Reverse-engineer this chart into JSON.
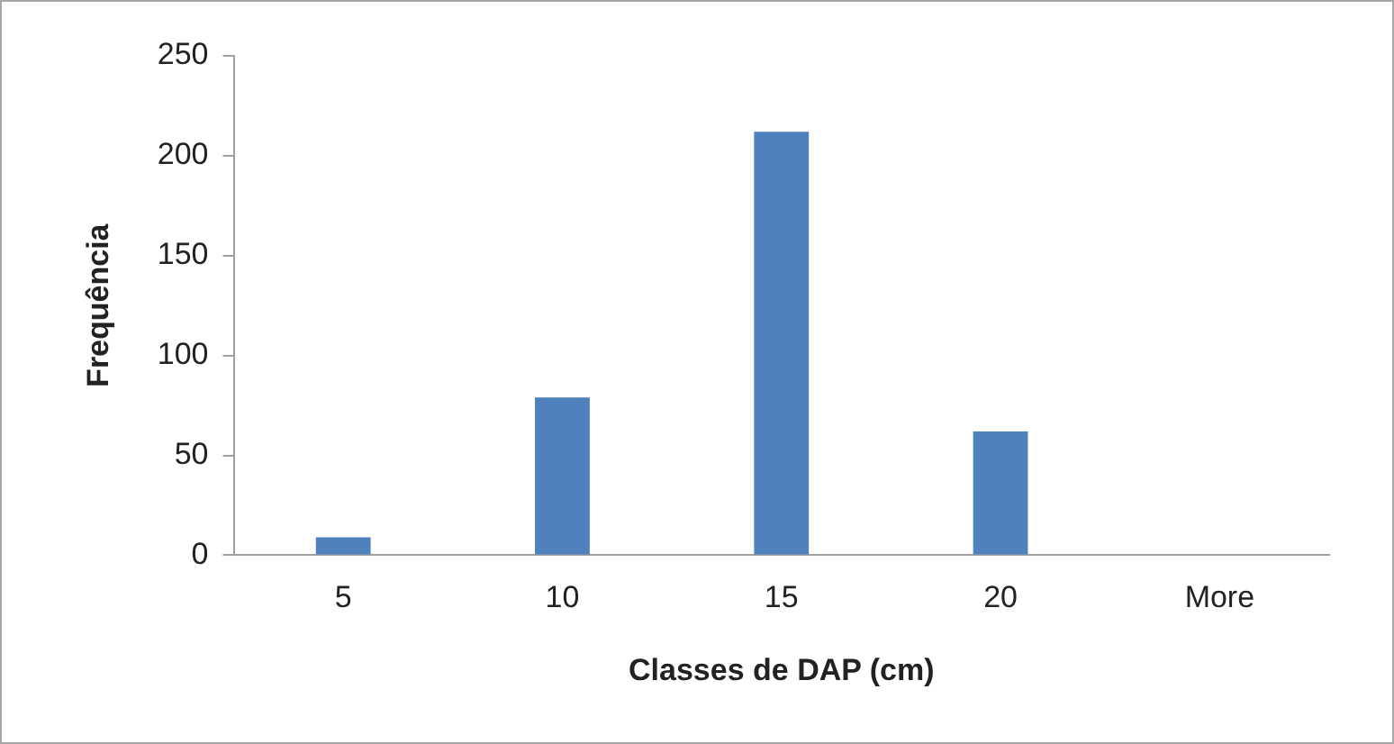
{
  "chart_data": {
    "type": "bar",
    "xlabel": "Classes de DAP (cm)",
    "ylabel": "Frequência",
    "categories": [
      "5",
      "10",
      "15",
      "20",
      "More"
    ],
    "values": [
      9,
      79,
      212,
      62,
      0
    ],
    "color": "#4f81bd",
    "ylim": [
      0,
      250
    ],
    "yticks": [
      0,
      50,
      100,
      150,
      200,
      250
    ],
    "grid": false,
    "legend": false
  }
}
